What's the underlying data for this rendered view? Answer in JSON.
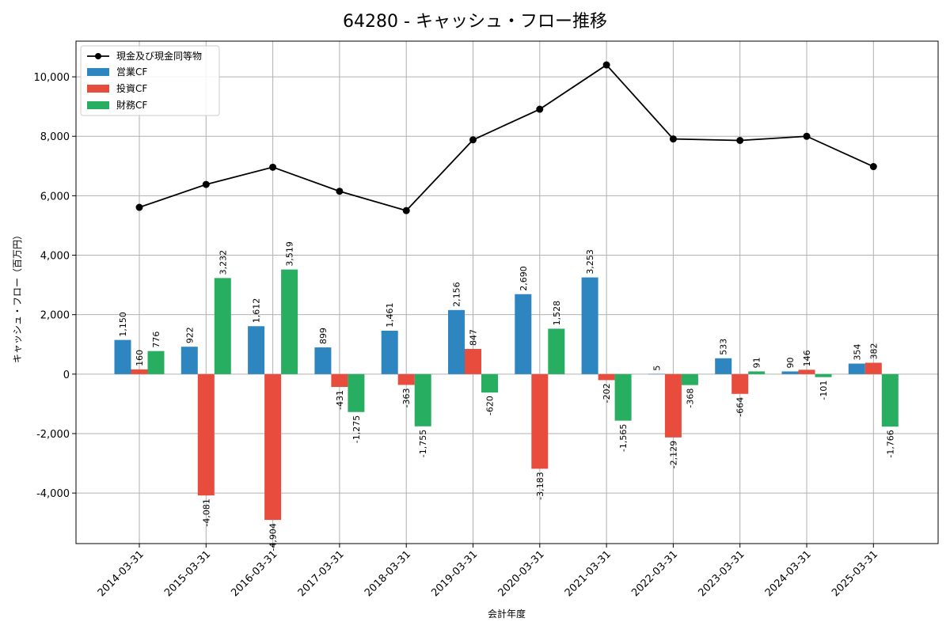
{
  "chart_data": {
    "type": "bar",
    "title": "64280 - キャッシュ・フロー推移",
    "xlabel": "会計年度",
    "ylabel": "キャッシュ・フロー（百万円）",
    "categories": [
      "2014-03-31",
      "2015-03-31",
      "2016-03-31",
      "2017-03-31",
      "2018-03-31",
      "2019-03-31",
      "2020-03-31",
      "2021-03-31",
      "2022-03-31",
      "2023-03-31",
      "2024-03-31",
      "2025-03-31"
    ],
    "ylim": [
      -5700,
      11200
    ],
    "yticks": [
      -4000,
      -2000,
      0,
      2000,
      4000,
      6000,
      8000,
      10000
    ],
    "ytick_labels": [
      "-4,000",
      "-2,000",
      "0",
      "2,000",
      "4,000",
      "6,000",
      "8,000",
      "10,000"
    ],
    "grid": true,
    "legend_position": "top-left",
    "line_series": {
      "name": "現金及び現金同等物",
      "color": "#000000",
      "values": [
        5610,
        6380,
        6960,
        6150,
        5500,
        7880,
        8910,
        10400,
        7910,
        7860,
        8000,
        6980
      ]
    },
    "series": [
      {
        "name": "営業CF",
        "color": "#2e86c1",
        "values": [
          1150,
          922,
          1612,
          899,
          1461,
          2156,
          2690,
          3253,
          5,
          533,
          90,
          354
        ],
        "labels": [
          "1,150",
          "922",
          "1,612",
          "899",
          "1,461",
          "2,156",
          "2,690",
          "3,253",
          "5",
          "533",
          "90",
          "354"
        ]
      },
      {
        "name": "投資CF",
        "color": "#e74c3c",
        "values": [
          160,
          -4081,
          -4904,
          -431,
          -363,
          847,
          -3183,
          -202,
          -2129,
          -664,
          146,
          382
        ],
        "labels": [
          "160",
          "-4,081",
          "-4,904",
          "-431",
          "-363",
          "847",
          "-3,183",
          "-202",
          "-2,129",
          "-664",
          "146",
          "382"
        ]
      },
      {
        "name": "財務CF",
        "color": "#27ae60",
        "values": [
          776,
          3232,
          3519,
          -1275,
          -1755,
          -620,
          1528,
          -1565,
          -368,
          91,
          -101,
          -1766
        ],
        "labels": [
          "776",
          "3,232",
          "3,519",
          "-1,275",
          "-1,755",
          "-620",
          "1,528",
          "-1,565",
          "-368",
          "91",
          "-101",
          "-1,766"
        ]
      }
    ]
  }
}
